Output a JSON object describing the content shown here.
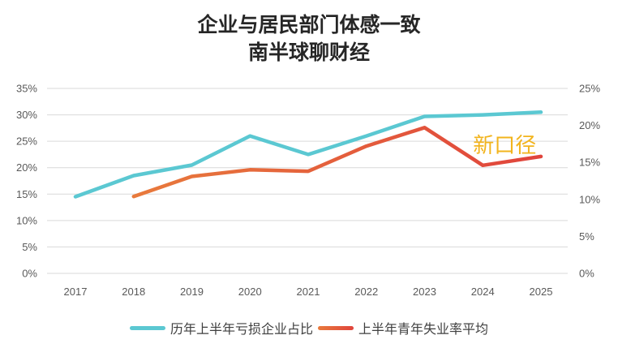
{
  "colors": {
    "series1": "#5BC8D2",
    "series2_start": "#E87A3C",
    "series2_end": "#E0443C",
    "annotation": "#F2B41D",
    "grid": "#D9D9D9",
    "tick": "#595959"
  },
  "chart_data": {
    "type": "line",
    "title_lines": [
      "企业与居民部门体感一致",
      "南半球聊财经"
    ],
    "categories": [
      "2017",
      "2018",
      "2019",
      "2020",
      "2021",
      "2022",
      "2023",
      "2024",
      "2025"
    ],
    "y_left": {
      "ticks": [
        "0%",
        "5%",
        "10%",
        "15%",
        "20%",
        "25%",
        "30%",
        "35%"
      ],
      "range": [
        0,
        35
      ]
    },
    "y_right": {
      "ticks": [
        "0%",
        "5%",
        "10%",
        "15%",
        "20%",
        "25%"
      ],
      "range": [
        0,
        25
      ]
    },
    "grid": true,
    "legend_position": "bottom",
    "series": [
      {
        "name": "历年上半年亏损企业占比",
        "axis": "left",
        "values": [
          14.5,
          18.5,
          20.5,
          26.0,
          22.5,
          26.0,
          29.7,
          30.0,
          30.5
        ]
      },
      {
        "name": "上半年青年失业率平均",
        "axis": "right",
        "values": [
          null,
          10.4,
          13.1,
          14.0,
          13.8,
          17.2,
          19.7,
          14.6,
          15.8
        ]
      }
    ],
    "annotations": [
      {
        "text": "新口径",
        "category": "2024"
      }
    ]
  }
}
